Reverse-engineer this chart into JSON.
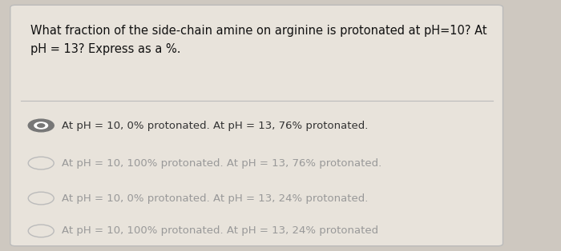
{
  "background_color": "#cec8c0",
  "card_color": "#e8e3db",
  "question": "What fraction of the side-chain amine on arginine is protonated at pH=10? At\npH = 13? Express as a %.",
  "options": [
    "At pH = 10, 0% protonated. At pH = 13, 76% protonated.",
    "At pH = 10, 100% protonated. At pH = 13, 76% protonated.",
    "At pH = 10, 0% protonated. At pH = 13, 24% protonated.",
    "At pH = 10, 100% protonated. At pH = 13, 24% protonated"
  ],
  "selected_option": 0,
  "question_fontsize": 10.5,
  "option_fontsize": 9.5,
  "selected_color": "#333333",
  "unselected_color": "#999999",
  "question_color": "#111111",
  "radio_selected_color": "#777777",
  "radio_unselected_color": "#bbbbbb",
  "separator_color": "#bbbbbb",
  "card_edge_color": "#bbbbbb"
}
